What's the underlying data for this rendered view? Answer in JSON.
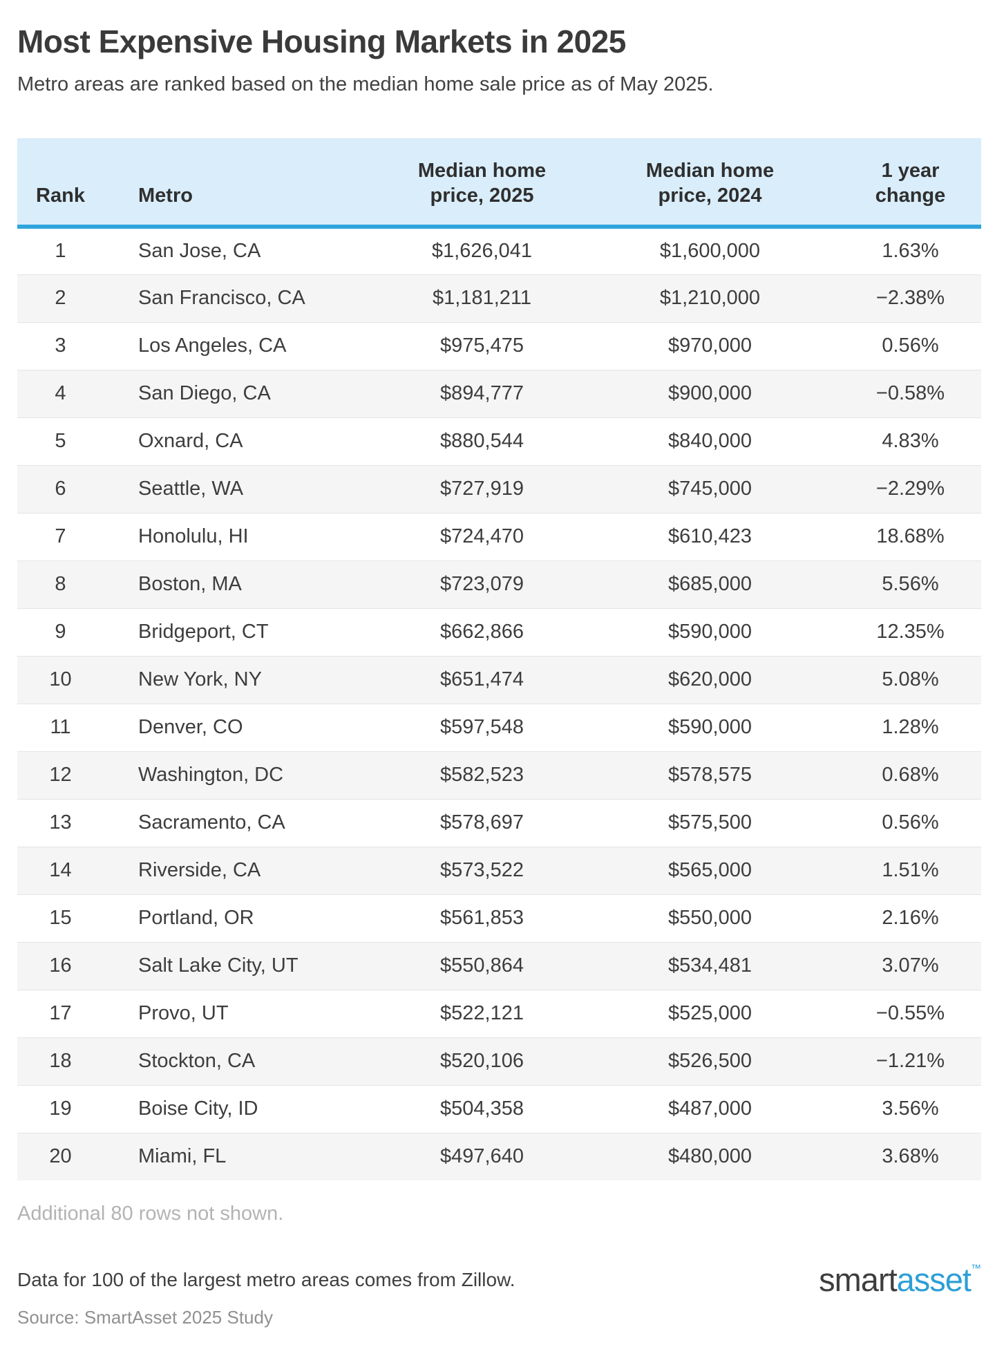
{
  "header": {
    "title": "Most Expensive Housing Markets in 2025",
    "subtitle": "Metro areas are ranked based on the median home sale price as of May 2025."
  },
  "chart_data": {
    "type": "table",
    "title": "Most Expensive Housing Markets in 2025",
    "columns": {
      "rank": "Rank",
      "metro": "Metro",
      "price_2025": [
        "Median home",
        "price, 2025"
      ],
      "price_2024": [
        "Median home",
        "price, 2024"
      ],
      "change": [
        "1 year",
        "change"
      ]
    },
    "rows": [
      {
        "rank": "1",
        "metro": "San Jose, CA",
        "price_2025": "$1,626,041",
        "price_2024": "$1,600,000",
        "change": "1.63%"
      },
      {
        "rank": "2",
        "metro": "San Francisco, CA",
        "price_2025": "$1,181,211",
        "price_2024": "$1,210,000",
        "change": "−2.38%"
      },
      {
        "rank": "3",
        "metro": "Los Angeles, CA",
        "price_2025": "$975,475",
        "price_2024": "$970,000",
        "change": "0.56%"
      },
      {
        "rank": "4",
        "metro": "San Diego, CA",
        "price_2025": "$894,777",
        "price_2024": "$900,000",
        "change": "−0.58%"
      },
      {
        "rank": "5",
        "metro": "Oxnard, CA",
        "price_2025": "$880,544",
        "price_2024": "$840,000",
        "change": "4.83%"
      },
      {
        "rank": "6",
        "metro": "Seattle, WA",
        "price_2025": "$727,919",
        "price_2024": "$745,000",
        "change": "−2.29%"
      },
      {
        "rank": "7",
        "metro": "Honolulu, HI",
        "price_2025": "$724,470",
        "price_2024": "$610,423",
        "change": "18.68%"
      },
      {
        "rank": "8",
        "metro": "Boston, MA",
        "price_2025": "$723,079",
        "price_2024": "$685,000",
        "change": "5.56%"
      },
      {
        "rank": "9",
        "metro": "Bridgeport, CT",
        "price_2025": "$662,866",
        "price_2024": "$590,000",
        "change": "12.35%"
      },
      {
        "rank": "10",
        "metro": "New York, NY",
        "price_2025": "$651,474",
        "price_2024": "$620,000",
        "change": "5.08%"
      },
      {
        "rank": "11",
        "metro": "Denver, CO",
        "price_2025": "$597,548",
        "price_2024": "$590,000",
        "change": "1.28%"
      },
      {
        "rank": "12",
        "metro": "Washington, DC",
        "price_2025": "$582,523",
        "price_2024": "$578,575",
        "change": "0.68%"
      },
      {
        "rank": "13",
        "metro": "Sacramento, CA",
        "price_2025": "$578,697",
        "price_2024": "$575,500",
        "change": "0.56%"
      },
      {
        "rank": "14",
        "metro": "Riverside, CA",
        "price_2025": "$573,522",
        "price_2024": "$565,000",
        "change": "1.51%"
      },
      {
        "rank": "15",
        "metro": "Portland, OR",
        "price_2025": "$561,853",
        "price_2024": "$550,000",
        "change": "2.16%"
      },
      {
        "rank": "16",
        "metro": "Salt Lake City, UT",
        "price_2025": "$550,864",
        "price_2024": "$534,481",
        "change": "3.07%"
      },
      {
        "rank": "17",
        "metro": "Provo, UT",
        "price_2025": "$522,121",
        "price_2024": "$525,000",
        "change": "−0.55%"
      },
      {
        "rank": "18",
        "metro": "Stockton, CA",
        "price_2025": "$520,106",
        "price_2024": "$526,500",
        "change": "−1.21%"
      },
      {
        "rank": "19",
        "metro": "Boise City, ID",
        "price_2025": "$504,358",
        "price_2024": "$487,000",
        "change": "3.56%"
      },
      {
        "rank": "20",
        "metro": "Miami, FL",
        "price_2025": "$497,640",
        "price_2024": "$480,000",
        "change": "3.68%"
      }
    ]
  },
  "footer": {
    "additional_note": "Additional 80 rows not shown.",
    "data_note": "Data for 100 of the largest metro areas comes from Zillow.",
    "source": "Source: SmartAsset 2025 Study"
  },
  "branding": {
    "logo_part1": "smart",
    "logo_part2": "asset",
    "logo_tm": "™"
  },
  "colors": {
    "header_background": "#d9edfa",
    "header_rule_blue": "#2fa5dc",
    "row_alt_gray": "#f5f5f5",
    "row_divider": "#e4e4e4",
    "text_dark": "#3a3a3a",
    "muted_gray": "#b3b3b3",
    "source_gray": "#909090",
    "logo_blue": "#2d9fd6"
  }
}
